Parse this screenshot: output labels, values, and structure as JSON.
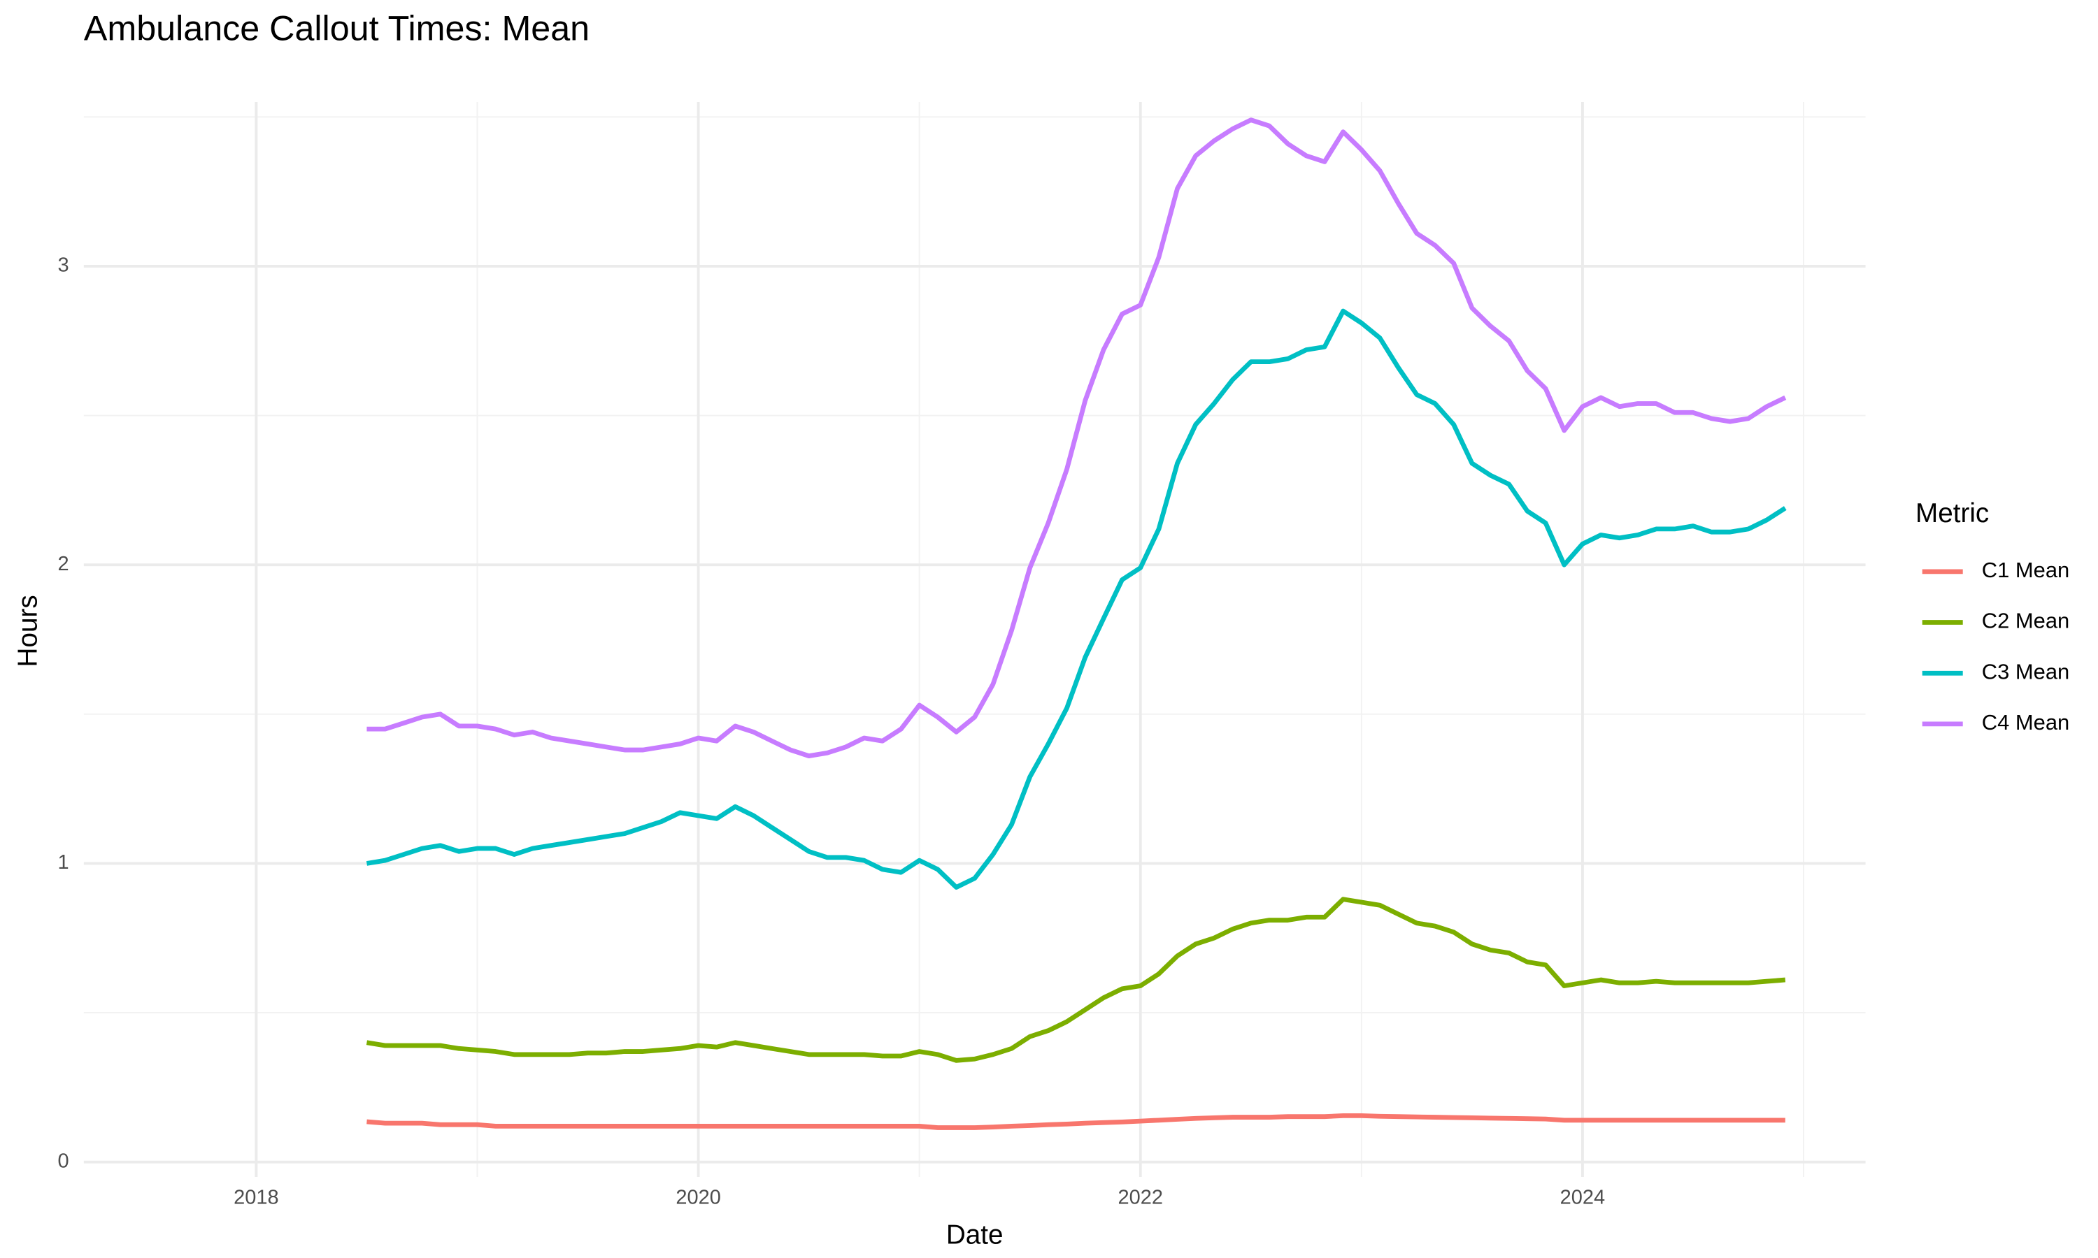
{
  "chart_data": {
    "type": "line",
    "title": "Ambulance Callout Times: Mean",
    "x_label": "Date",
    "y_label": "Hours",
    "legend_title": "Metric",
    "legend": "right",
    "grid": true,
    "xlim": [
      2017.22,
      2025.28
    ],
    "xticks": [
      2018,
      2020,
      2022,
      2024
    ],
    "x_minor_ticks": [
      2019,
      2021,
      2023,
      2025
    ],
    "ylim": [
      -0.05,
      3.55
    ],
    "yticks": [
      0,
      1,
      2,
      3
    ],
    "y_minor_ticks": [
      0.5,
      1.5,
      2.5,
      3.5
    ],
    "x": [
      2018.5,
      2018.583,
      2018.667,
      2018.75,
      2018.833,
      2018.917,
      2019,
      2019.083,
      2019.167,
      2019.25,
      2019.333,
      2019.417,
      2019.5,
      2019.583,
      2019.667,
      2019.75,
      2019.833,
      2019.917,
      2020,
      2020.083,
      2020.167,
      2020.25,
      2020.333,
      2020.417,
      2020.5,
      2020.583,
      2020.667,
      2020.75,
      2020.833,
      2020.917,
      2021,
      2021.083,
      2021.167,
      2021.25,
      2021.333,
      2021.417,
      2021.5,
      2021.583,
      2021.667,
      2021.75,
      2021.833,
      2021.917,
      2022,
      2022.083,
      2022.167,
      2022.25,
      2022.333,
      2022.417,
      2022.5,
      2022.583,
      2022.667,
      2022.75,
      2022.833,
      2022.917,
      2023,
      2023.083,
      2023.167,
      2023.25,
      2023.333,
      2023.417,
      2023.5,
      2023.583,
      2023.667,
      2023.75,
      2023.833,
      2023.917,
      2024,
      2024.083,
      2024.167,
      2024.25,
      2024.333,
      2024.417,
      2024.5,
      2024.583,
      2024.667,
      2024.75,
      2024.833,
      2024.917
    ],
    "series": [
      {
        "name": "C1 Mean",
        "color": "#f8766d",
        "values": [
          0.135,
          0.13,
          0.13,
          0.13,
          0.125,
          0.125,
          0.125,
          0.12,
          0.12,
          0.12,
          0.12,
          0.12,
          0.12,
          0.12,
          0.12,
          0.12,
          0.12,
          0.12,
          0.12,
          0.12,
          0.12,
          0.12,
          0.12,
          0.12,
          0.12,
          0.12,
          0.12,
          0.12,
          0.12,
          0.12,
          0.12,
          0.115,
          0.115,
          0.115,
          0.117,
          0.12,
          0.122,
          0.125,
          0.127,
          0.13,
          0.132,
          0.134,
          0.137,
          0.14,
          0.143,
          0.146,
          0.148,
          0.15,
          0.15,
          0.15,
          0.152,
          0.152,
          0.152,
          0.155,
          0.155,
          0.153,
          0.152,
          0.151,
          0.15,
          0.149,
          0.148,
          0.147,
          0.146,
          0.145,
          0.144,
          0.14,
          0.14,
          0.14,
          0.14,
          0.14,
          0.14,
          0.14,
          0.14,
          0.14,
          0.14,
          0.14,
          0.14,
          0.14
        ]
      },
      {
        "name": "C2 Mean",
        "color": "#7cae00",
        "values": [
          0.4,
          0.39,
          0.39,
          0.39,
          0.39,
          0.38,
          0.375,
          0.37,
          0.36,
          0.36,
          0.36,
          0.36,
          0.365,
          0.365,
          0.37,
          0.37,
          0.375,
          0.38,
          0.39,
          0.385,
          0.4,
          0.39,
          0.38,
          0.37,
          0.36,
          0.36,
          0.36,
          0.36,
          0.355,
          0.355,
          0.37,
          0.36,
          0.34,
          0.345,
          0.36,
          0.38,
          0.42,
          0.44,
          0.47,
          0.51,
          0.55,
          0.58,
          0.59,
          0.63,
          0.69,
          0.73,
          0.75,
          0.78,
          0.8,
          0.81,
          0.81,
          0.82,
          0.82,
          0.88,
          0.87,
          0.86,
          0.83,
          0.8,
          0.79,
          0.77,
          0.73,
          0.71,
          0.7,
          0.67,
          0.66,
          0.59,
          0.6,
          0.61,
          0.6,
          0.6,
          0.605,
          0.6,
          0.6,
          0.6,
          0.6,
          0.6,
          0.605,
          0.61
        ]
      },
      {
        "name": "C3 Mean",
        "color": "#00bfc4",
        "values": [
          1.0,
          1.01,
          1.03,
          1.05,
          1.06,
          1.04,
          1.05,
          1.05,
          1.03,
          1.05,
          1.06,
          1.07,
          1.08,
          1.09,
          1.1,
          1.12,
          1.14,
          1.17,
          1.16,
          1.15,
          1.19,
          1.16,
          1.12,
          1.08,
          1.04,
          1.02,
          1.02,
          1.01,
          0.98,
          0.97,
          1.01,
          0.98,
          0.92,
          0.95,
          1.03,
          1.13,
          1.29,
          1.4,
          1.52,
          1.69,
          1.82,
          1.95,
          1.99,
          2.12,
          2.34,
          2.47,
          2.54,
          2.62,
          2.68,
          2.68,
          2.69,
          2.72,
          2.73,
          2.85,
          2.81,
          2.76,
          2.66,
          2.57,
          2.54,
          2.47,
          2.34,
          2.3,
          2.27,
          2.18,
          2.14,
          2.0,
          2.07,
          2.1,
          2.09,
          2.1,
          2.12,
          2.12,
          2.13,
          2.11,
          2.11,
          2.12,
          2.15,
          2.19
        ]
      },
      {
        "name": "C4 Mean",
        "color": "#c77cff",
        "values": [
          1.45,
          1.45,
          1.47,
          1.49,
          1.5,
          1.46,
          1.46,
          1.45,
          1.43,
          1.44,
          1.42,
          1.41,
          1.4,
          1.39,
          1.38,
          1.38,
          1.39,
          1.4,
          1.42,
          1.41,
          1.46,
          1.44,
          1.41,
          1.38,
          1.36,
          1.37,
          1.39,
          1.42,
          1.41,
          1.45,
          1.53,
          1.49,
          1.44,
          1.49,
          1.6,
          1.78,
          1.99,
          2.14,
          2.32,
          2.55,
          2.72,
          2.84,
          2.87,
          3.03,
          3.26,
          3.37,
          3.42,
          3.46,
          3.49,
          3.47,
          3.41,
          3.37,
          3.35,
          3.45,
          3.39,
          3.32,
          3.21,
          3.11,
          3.07,
          3.01,
          2.86,
          2.8,
          2.75,
          2.65,
          2.59,
          2.45,
          2.53,
          2.56,
          2.53,
          2.54,
          2.54,
          2.51,
          2.51,
          2.49,
          2.48,
          2.49,
          2.53,
          2.56
        ]
      }
    ]
  }
}
